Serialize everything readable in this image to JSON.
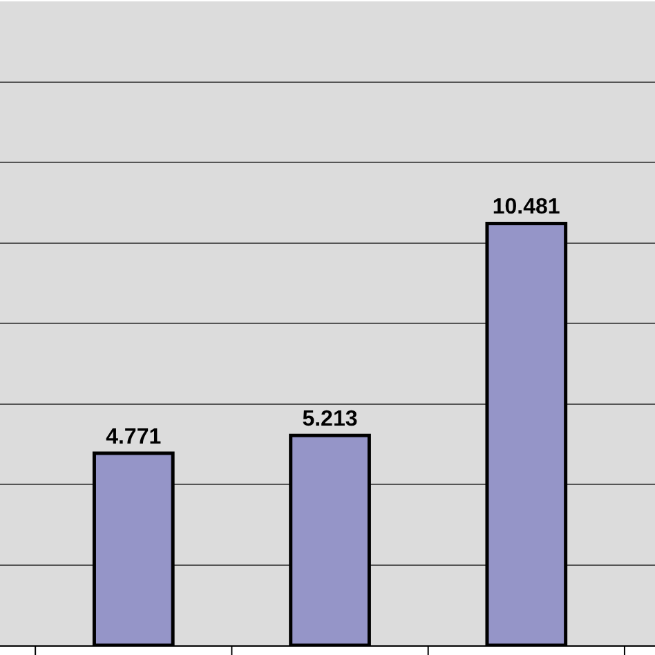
{
  "chart_data": {
    "type": "bar",
    "categories": [
      null,
      null,
      null
    ],
    "values": [
      4.771,
      5.213,
      10.481
    ],
    "color": "#9595c8",
    "data_labels": true,
    "ylim": [
      0,
      16
    ],
    "yticks": [
      {
        "value": 0,
        "label": null
      },
      {
        "value": 2,
        "label": null
      },
      {
        "value": 4,
        "label": null
      },
      {
        "value": 6,
        "label": null
      },
      {
        "value": 8,
        "label": null
      },
      {
        "value": 10,
        "label": null
      },
      {
        "value": 12,
        "label": null
      },
      {
        "value": 14,
        "label": null
      },
      {
        "value": 16,
        "label": null
      }
    ],
    "grid": "y"
  }
}
